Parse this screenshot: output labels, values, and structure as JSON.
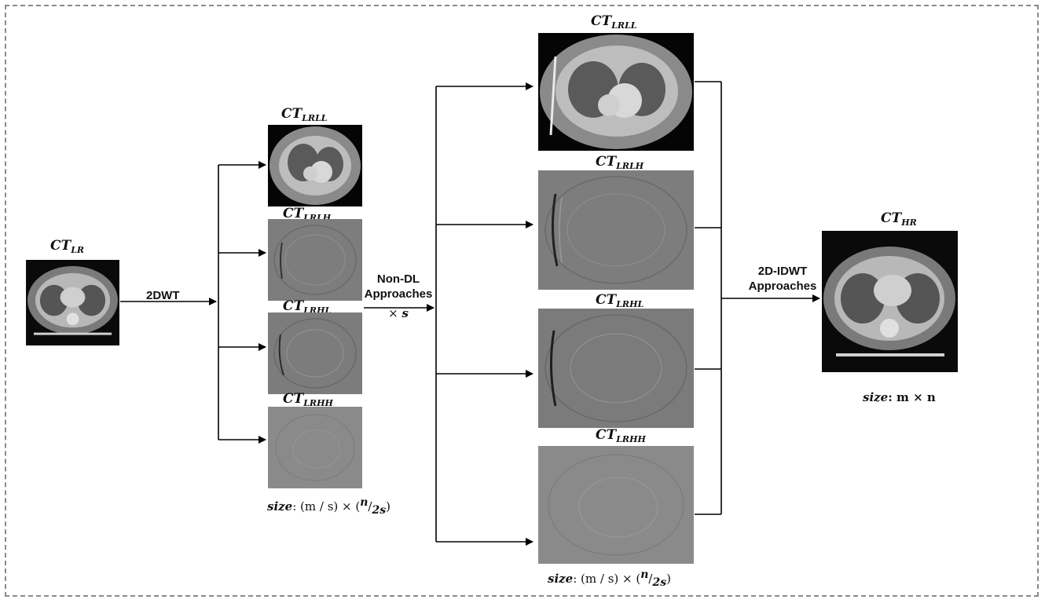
{
  "frame": {
    "border_color": "#8a8a8a",
    "style": "dashed"
  },
  "input": {
    "base": "CT",
    "sub": "LR"
  },
  "step1": {
    "label": "2DWT"
  },
  "step2": {
    "line1": "Non-DL",
    "line2": "Approaches",
    "scale_sym": "×",
    "scale_var": "s"
  },
  "step3": {
    "line1": "2D-IDWT",
    "line2": "Approaches"
  },
  "output": {
    "base": "CT",
    "sub": "HR"
  },
  "subbands_small": [
    {
      "base": "CT",
      "sub": "LRLL"
    },
    {
      "base": "CT",
      "sub": "LRLH"
    },
    {
      "base": "CT",
      "sub": "LRHL"
    },
    {
      "base": "CT",
      "sub": "LRHH"
    }
  ],
  "subbands_large": [
    {
      "base": "CT",
      "sub": "LRLL"
    },
    {
      "base": "CT",
      "sub": "LRLH"
    },
    {
      "base": "CT",
      "sub": "LRHL"
    },
    {
      "base": "CT",
      "sub": "LRHH"
    }
  ],
  "size_small": {
    "key": "size",
    "expr": ": (m / s) × (",
    "num": "n",
    "slash": "/",
    "den": "2s",
    "close": ")"
  },
  "size_large": {
    "key": "size",
    "expr": ": (m / s) × (",
    "num": "n",
    "slash": "/",
    "den": "2s",
    "close": ")"
  },
  "size_output": {
    "key": "size",
    "expr": ": m × n"
  },
  "icons": [
    "ct-scan-image",
    "arrow-right-icon"
  ]
}
